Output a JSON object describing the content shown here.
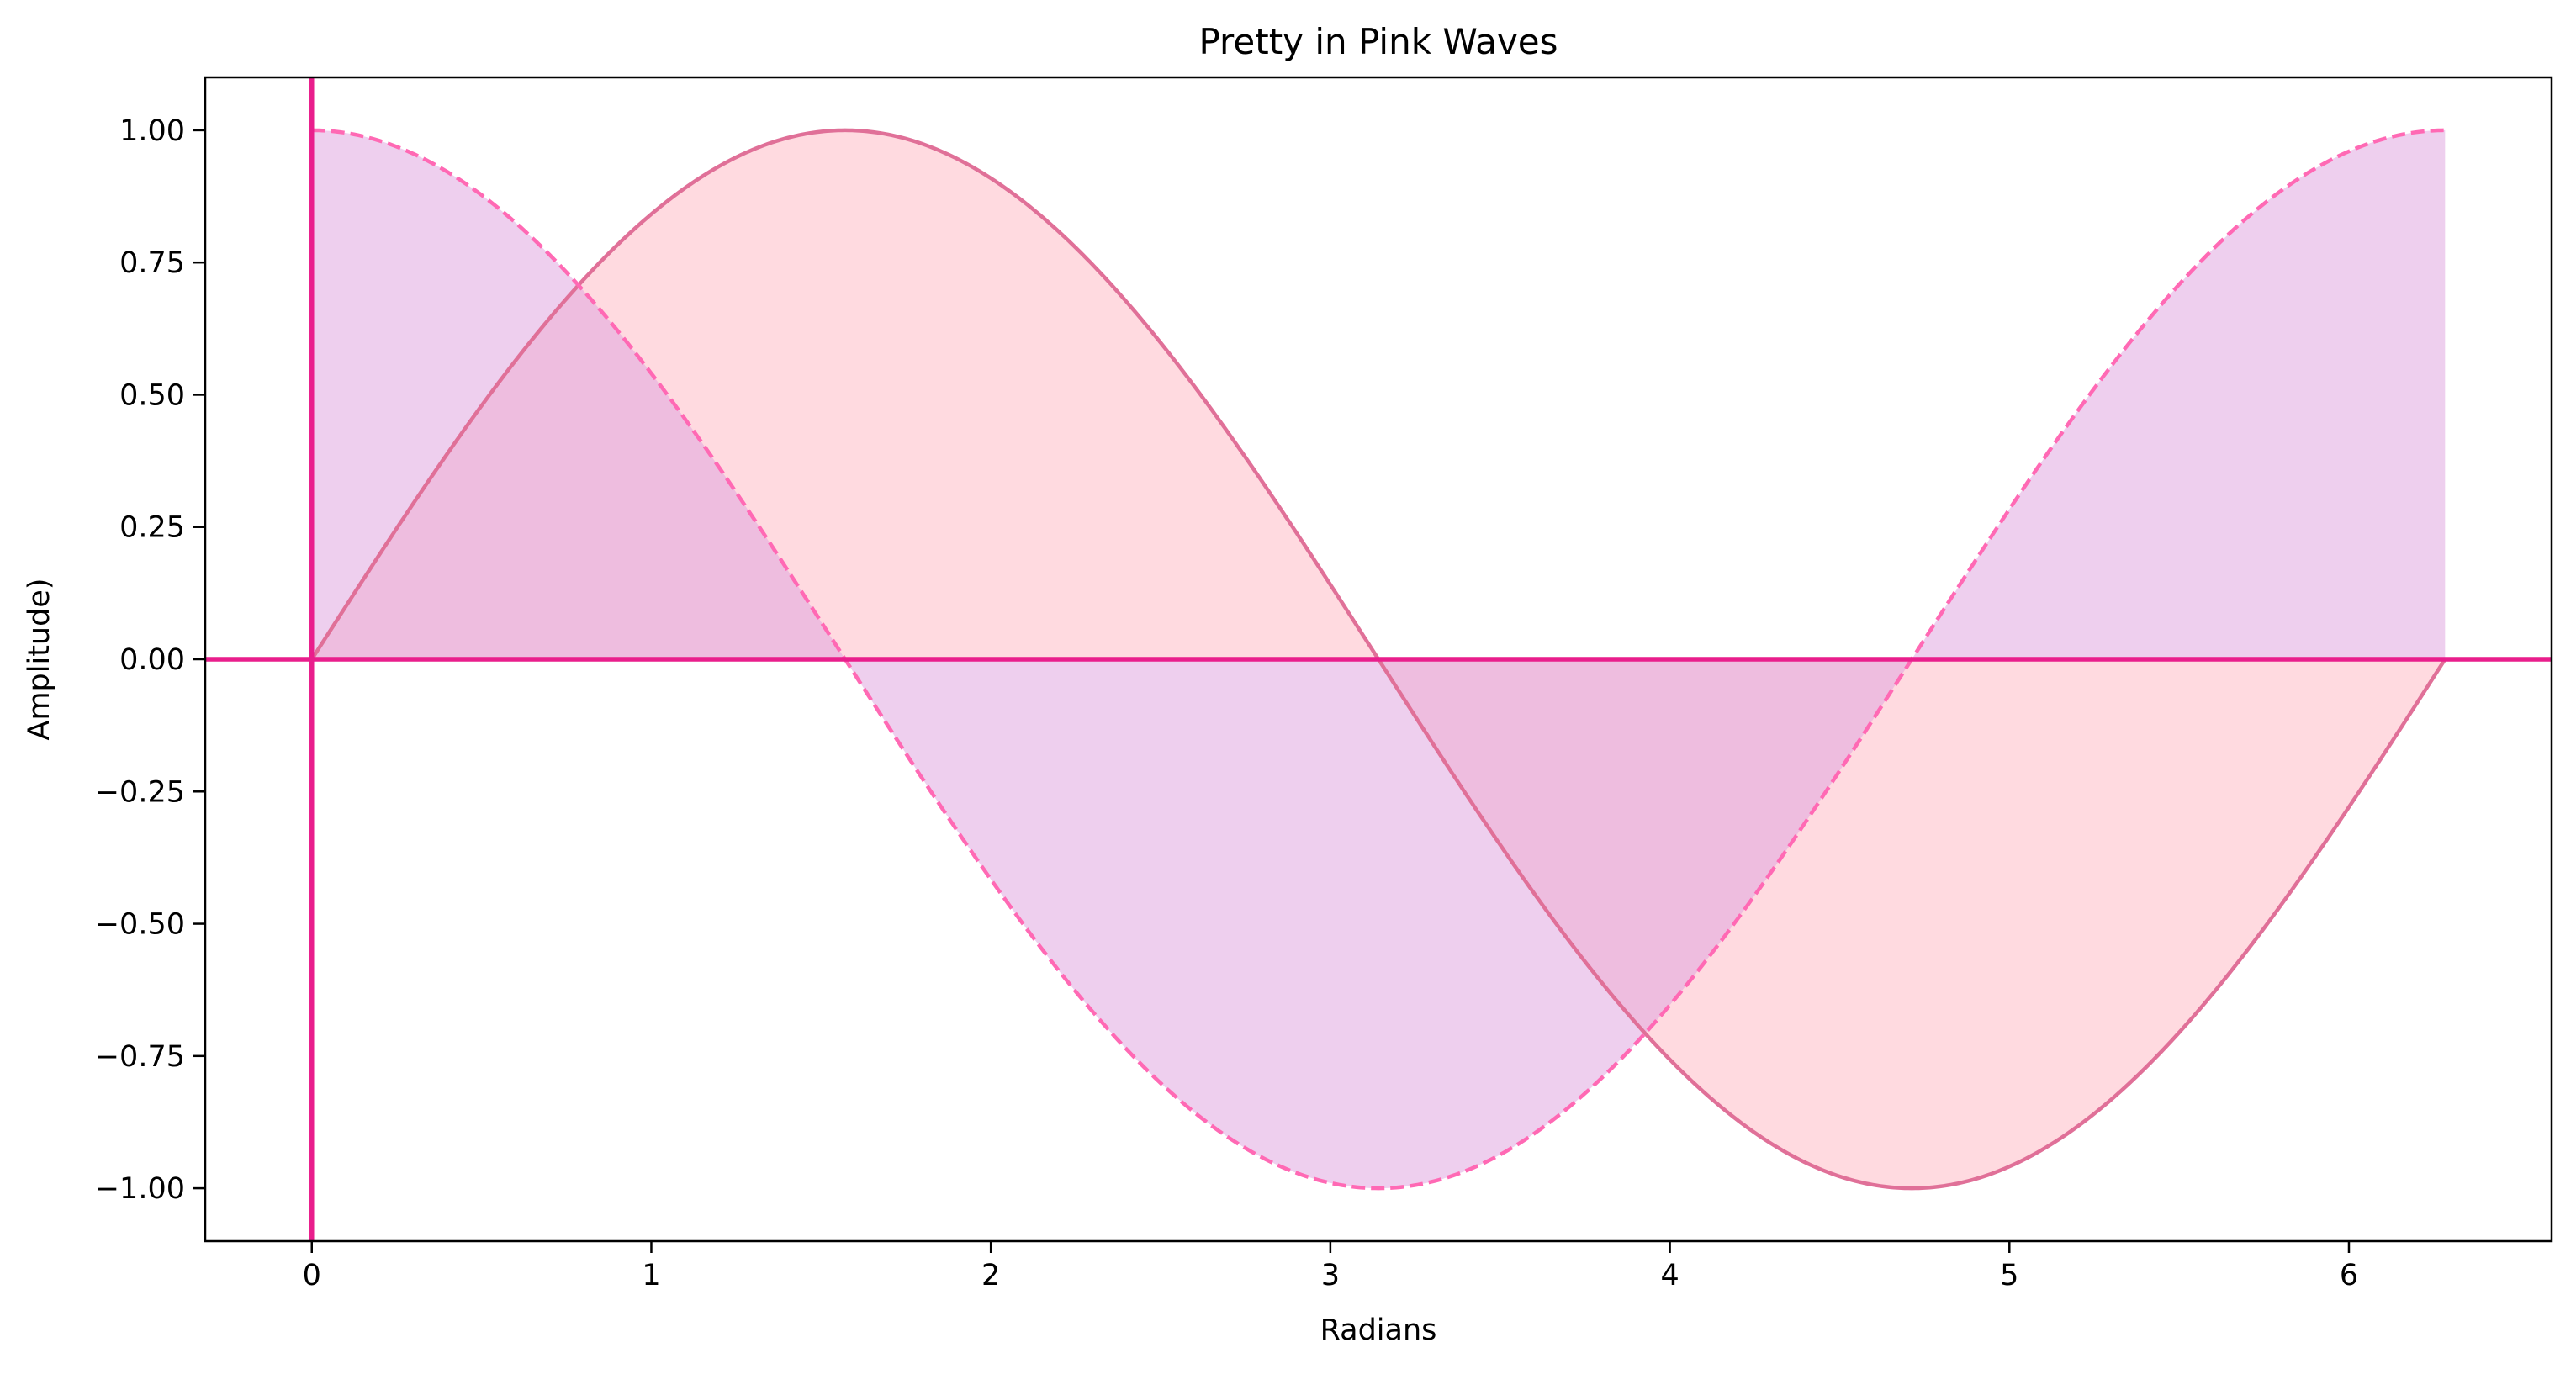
{
  "chart_data": {
    "type": "line",
    "title": "Pretty in Pink Waves",
    "xlabel": "Radians",
    "ylabel": "Amplitude)",
    "xlim": [
      -0.314,
      6.597
    ],
    "ylim": [
      -1.1,
      1.1
    ],
    "x_ticks": [
      0,
      1,
      2,
      3,
      4,
      5,
      6
    ],
    "y_ticks": [
      1.0,
      0.75,
      0.5,
      0.25,
      0.0,
      -0.25,
      -0.5,
      -0.75,
      -1.0
    ],
    "x_tick_labels": [
      "0",
      "1",
      "2",
      "3",
      "4",
      "5",
      "6"
    ],
    "y_tick_labels": [
      "1.00",
      "0.75",
      "0.50",
      "0.25",
      "0.00",
      "−0.25",
      "−0.50",
      "−0.75",
      "−1.00"
    ],
    "grid": false,
    "legend": "none",
    "reference_lines": {
      "horizontal_y": 0,
      "vertical_x": 0,
      "color": "#e91e8c"
    },
    "x_range": [
      0,
      6.2832
    ],
    "series": [
      {
        "function": "sin(x)",
        "line_style": "solid",
        "line_color": "#e07098",
        "fill_to_zero": true,
        "fill_color": "#ffb6c1"
      },
      {
        "function": "cos(x)",
        "line_style": "dashed",
        "line_color": "#ff69b4",
        "fill_to_zero": true,
        "fill_color": "#dda0dd"
      }
    ]
  }
}
